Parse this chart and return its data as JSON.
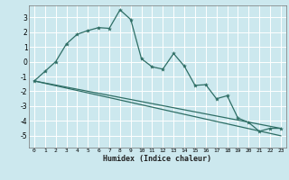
{
  "xlabel": "Humidex (Indice chaleur)",
  "bg_color": "#cce8ee",
  "grid_color": "#ffffff",
  "line_color": "#2e6e65",
  "xlim": [
    -0.5,
    23.5
  ],
  "ylim": [
    -5.8,
    3.8
  ],
  "xticks": [
    0,
    1,
    2,
    3,
    4,
    5,
    6,
    7,
    8,
    9,
    10,
    11,
    12,
    13,
    14,
    15,
    16,
    17,
    18,
    19,
    20,
    21,
    22,
    23
  ],
  "yticks": [
    -5,
    -4,
    -3,
    -2,
    -1,
    0,
    1,
    2,
    3
  ],
  "curve1_x": [
    0,
    1,
    2,
    3,
    4,
    5,
    6,
    7,
    8,
    9,
    10,
    11,
    12,
    13,
    14,
    15,
    16,
    17,
    18,
    19,
    20,
    21,
    22,
    23
  ],
  "curve1_y": [
    -1.3,
    -0.65,
    0.0,
    1.2,
    1.85,
    2.1,
    2.3,
    2.25,
    3.5,
    2.85,
    0.2,
    -0.35,
    -0.5,
    0.55,
    -0.3,
    -1.6,
    -1.55,
    -2.5,
    -2.3,
    -3.8,
    -4.1,
    -4.7,
    -4.5,
    -4.5
  ],
  "trend1_x": [
    0,
    23
  ],
  "trend1_y": [
    -1.3,
    -4.5
  ],
  "trend2_x": [
    0,
    23
  ],
  "trend2_y": [
    -1.3,
    -5.0
  ]
}
